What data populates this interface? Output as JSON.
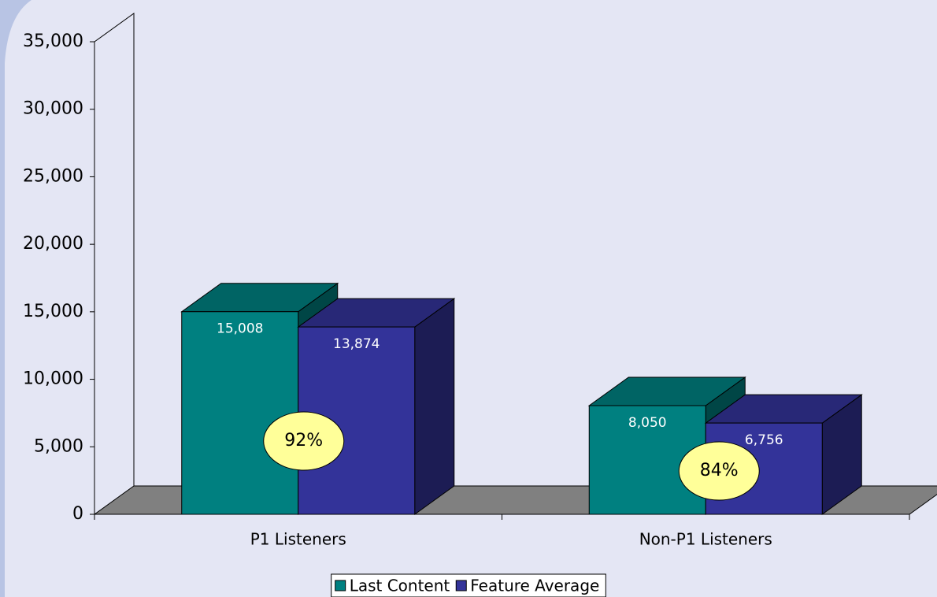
{
  "chart_data": {
    "type": "bar3d",
    "categories": [
      "P1 Listeners",
      "Non-P1 Listeners"
    ],
    "series": [
      {
        "name": "Last Content",
        "color": "#008080",
        "values": [
          15008,
          8050
        ],
        "value_labels": [
          "15,008",
          "8,050"
        ]
      },
      {
        "name": "Feature Average",
        "color": "#333399",
        "values": [
          13874,
          6756
        ],
        "value_labels": [
          "13,874",
          "6,756"
        ]
      }
    ],
    "annotations": [
      {
        "text": "92%"
      },
      {
        "text": "84%"
      }
    ],
    "ylim": [
      0,
      35000
    ],
    "yticks": [
      0,
      {
        "value": 5000,
        "label": "5,000"
      },
      {
        "value": 10000,
        "label": "10,000"
      },
      {
        "value": 15000,
        "label": "15,000"
      },
      {
        "value": 20000,
        "label": "20,000"
      },
      {
        "value": 25000,
        "label": "25,000"
      },
      {
        "value": 30000,
        "label": "30,000"
      },
      {
        "value": 35000,
        "label": "35,000"
      }
    ],
    "grid": false,
    "legend": "bottom"
  }
}
